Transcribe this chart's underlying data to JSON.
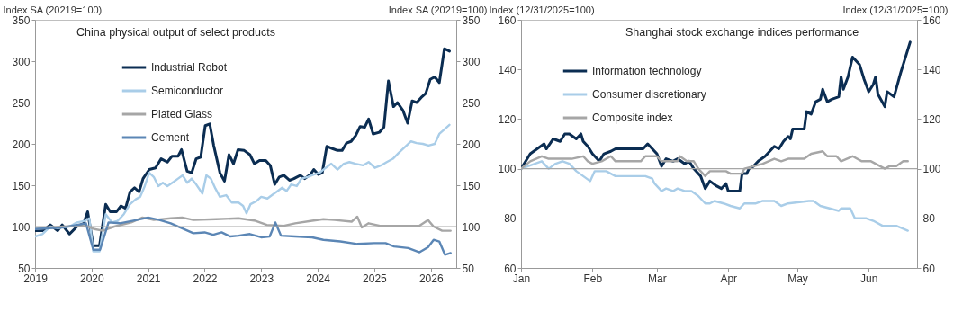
{
  "chart_data": [
    {
      "type": "line",
      "title": "China physical output of select products",
      "ylabel": "Index SA (20219=100)",
      "y2label": "Index SA (20219=100)",
      "xlim": [
        2019,
        2026.45
      ],
      "xticks": [
        2019,
        2020,
        2021,
        2022,
        2023,
        2024,
        2025,
        2026
      ],
      "ylim": [
        50,
        350
      ],
      "yticks": [
        50,
        100,
        150,
        200,
        250,
        300,
        350
      ],
      "y2lim": [
        50,
        350
      ],
      "y2ticks": [
        50,
        100,
        150,
        200,
        250,
        300,
        350
      ],
      "legend": "top left",
      "grid": false,
      "line_style": "solid",
      "marker": "none",
      "ref_lines": [
        {
          "axis": "y",
          "value": 100,
          "color": "#a6a6a6"
        }
      ],
      "series": [
        {
          "name": "Industrial Robot",
          "color": "#0b2d52",
          "x": [
            2019,
            2019.13,
            2019.27,
            2019.4,
            2019.48,
            2019.61,
            2019.74,
            2019.86,
            2019.93,
            2020.03,
            2020.14,
            2020.25,
            2020.33,
            2020.44,
            2020.52,
            2020.6,
            2020.68,
            2020.76,
            2020.84,
            2020.91,
            2021.02,
            2021.13,
            2021.23,
            2021.34,
            2021.42,
            2021.53,
            2021.59,
            2021.69,
            2021.77,
            2021.85,
            2021.93,
            2022.01,
            2022.09,
            2022.16,
            2022.27,
            2022.35,
            2022.43,
            2022.51,
            2022.59,
            2022.7,
            2022.8,
            2022.88,
            2022.97,
            2023.08,
            2023.16,
            2023.24,
            2023.32,
            2023.4,
            2023.5,
            2023.58,
            2023.69,
            2023.77,
            2023.87,
            2023.93,
            2024.01,
            2024.08,
            2024.16,
            2024.27,
            2024.35,
            2024.43,
            2024.51,
            2024.59,
            2024.67,
            2024.75,
            2024.83,
            2024.9,
            2024.98,
            2025.09,
            2025.17,
            2025.25,
            2025.34,
            2025.41,
            2025.51,
            2025.59,
            2025.67,
            2025.75,
            2025.83,
            2025.91,
            2025.99,
            2026.07,
            2026.15,
            2026.24,
            2026.33
          ],
          "values": [
            95,
            95,
            102,
            95,
            102,
            91,
            100,
            104,
            118,
            77,
            77,
            127,
            118,
            118,
            125,
            122,
            142,
            147,
            142,
            158,
            169,
            171,
            182,
            178,
            185,
            185,
            193,
            167,
            165,
            182,
            184,
            222,
            224,
            198,
            165,
            155,
            187,
            176,
            193,
            192,
            187,
            176,
            180,
            180,
            174,
            151,
            160,
            162,
            156,
            158,
            162,
            158,
            163,
            169,
            163,
            165,
            197,
            194,
            192,
            192,
            201,
            203,
            210,
            221,
            220,
            230,
            212,
            214,
            220,
            276,
            245,
            250,
            240,
            225,
            252,
            250,
            256,
            261,
            278,
            281,
            274,
            315,
            312
          ]
        },
        {
          "name": "Semiconductor",
          "color": "#a9cde8",
          "x": [
            2019,
            2019.13,
            2019.27,
            2019.4,
            2019.61,
            2019.74,
            2019.88,
            2019.96,
            2020.03,
            2020.14,
            2020.25,
            2020.36,
            2020.46,
            2020.57,
            2020.68,
            2020.78,
            2020.86,
            2020.94,
            2021.02,
            2021.1,
            2021.18,
            2021.26,
            2021.34,
            2021.45,
            2021.53,
            2021.61,
            2021.69,
            2021.77,
            2021.85,
            2021.96,
            2022.03,
            2022.11,
            2022.19,
            2022.27,
            2022.38,
            2022.48,
            2022.6,
            2022.68,
            2022.74,
            2022.81,
            2022.92,
            2023,
            2023.11,
            2023.19,
            2023.29,
            2023.37,
            2023.45,
            2023.53,
            2023.63,
            2023.71,
            2023.82,
            2023.93,
            2024.03,
            2024.14,
            2024.24,
            2024.35,
            2024.46,
            2024.56,
            2024.67,
            2024.8,
            2024.9,
            2025.01,
            2025.12,
            2025.22,
            2025.33,
            2025.43,
            2025.54,
            2025.65,
            2025.75,
            2025.86,
            2025.96,
            2026.07,
            2026.15,
            2026.25,
            2026.33
          ],
          "values": [
            88,
            91,
            100,
            98,
            100,
            105,
            107,
            110,
            70,
            70,
            115,
            105,
            107,
            115,
            127,
            133,
            136,
            149,
            165,
            160,
            149,
            153,
            149,
            154,
            158,
            162,
            153,
            158,
            151,
            140,
            162,
            158,
            146,
            136,
            138,
            129,
            129,
            125,
            116,
            127,
            131,
            136,
            134,
            138,
            143,
            147,
            143,
            151,
            149,
            158,
            160,
            163,
            165,
            171,
            176,
            169,
            176,
            178,
            176,
            174,
            178,
            171,
            174,
            178,
            182,
            189,
            196,
            203,
            201,
            200,
            198,
            200,
            212,
            218,
            223
          ]
        },
        {
          "name": "Plated Glass",
          "color": "#a6a6a6",
          "x": [
            2019,
            2019.5,
            2019.9,
            2020.05,
            2020.2,
            2020.4,
            2020.7,
            2020.9,
            2021.1,
            2021.4,
            2021.6,
            2021.8,
            2022.2,
            2022.6,
            2022.9,
            2023.1,
            2023.4,
            2023.6,
            2023.9,
            2024.1,
            2024.3,
            2024.6,
            2024.7,
            2024.78,
            2024.9,
            2025.1,
            2025.5,
            2025.8,
            2025.95,
            2026.05,
            2026.2,
            2026.35
          ],
          "values": [
            97,
            100,
            101,
            97,
            95,
            100,
            105,
            111,
            108,
            110,
            111,
            108,
            109,
            110,
            107,
            102,
            101,
            104,
            107,
            109,
            108,
            106,
            112,
            99,
            104,
            101,
            101,
            101,
            108,
            100,
            95,
            95
          ]
        },
        {
          "name": "Cement",
          "color": "#5b86b5",
          "x": [
            2019,
            2019.5,
            2019.9,
            2020.03,
            2020.15,
            2020.3,
            2020.5,
            2020.8,
            2021,
            2021.2,
            2021.4,
            2021.6,
            2021.8,
            2022,
            2022.15,
            2022.3,
            2022.45,
            2022.6,
            2022.8,
            2023,
            2023.15,
            2023.25,
            2023.35,
            2023.6,
            2023.9,
            2024.1,
            2024.4,
            2024.7,
            2025,
            2025.2,
            2025.35,
            2025.6,
            2025.8,
            2025.95,
            2026.05,
            2026.15,
            2026.25,
            2026.35
          ],
          "values": [
            97,
            99,
            104,
            72,
            72,
            105,
            104,
            108,
            111,
            108,
            104,
            98,
            92,
            93,
            90,
            93,
            88,
            89,
            91,
            87,
            88,
            105,
            89,
            88,
            87,
            84,
            82,
            79,
            80,
            80,
            76,
            74,
            69,
            75,
            84,
            82,
            66,
            68
          ]
        }
      ]
    },
    {
      "type": "line",
      "title": "Shanghai stock exchange indices performance",
      "ylabel": "Index (12/31/2025=100)",
      "y2label": "Index (12/31/2025=100)",
      "xlim": [
        "--01-01",
        "--06-22"
      ],
      "xticks": [
        {
          "value": "--01-01",
          "label": "Jan"
        },
        {
          "value": "--02-01",
          "label": "Feb"
        },
        {
          "value": "--03-01",
          "label": "Mar"
        },
        {
          "value": "--04-01",
          "label": "Apr"
        },
        {
          "value": "--05-01",
          "label": "May"
        },
        {
          "value": "--06-01",
          "label": "Jun"
        }
      ],
      "ylim": [
        60,
        160
      ],
      "yticks": [
        60,
        80,
        100,
        120,
        140,
        160
      ],
      "y2lim": [
        60,
        160
      ],
      "y2ticks": [
        60,
        80,
        100,
        120,
        140,
        160
      ],
      "legend": "top left",
      "grid": false,
      "line_style": "solid",
      "marker": "none",
      "ref_lines": [
        {
          "axis": "y",
          "value": 100,
          "color": "#a6a6a6"
        }
      ],
      "series": [
        {
          "name": "Information technology",
          "color": "#0b2d52",
          "x": [
            "--01-01",
            "--01-05",
            "--01-08",
            "--01-11",
            "--01-12",
            "--01-15",
            "--01-18",
            "--01-20",
            "--01-22",
            "--01-25",
            "--01-27",
            "--01-28",
            "--01-30",
            "--02-01",
            "--02-04",
            "--02-06",
            "--02-09",
            "--02-11",
            "--02-17",
            "--02-23",
            "--02-25",
            "--02-27",
            "--03-01",
            "--03-03",
            "--03-05",
            "--03-08",
            "--03-10",
            "--03-13",
            "--03-15",
            "--03-17",
            "--03-20",
            "--03-22",
            "--03-24",
            "--03-27",
            "--03-29",
            "--03-31",
            "--04-01",
            "--04-04",
            "--04-06",
            "--04-07",
            "--04-09",
            "--04-10",
            "--04-12",
            "--04-14",
            "--04-17",
            "--04-19",
            "--04-21",
            "--04-23",
            "--04-25",
            "--04-27",
            "--04-28",
            "--04-29",
            "--05-04",
            "--05-05",
            "--05-07",
            "--05-09",
            "--05-11",
            "--05-12",
            "--05-14",
            "--05-16",
            "--05-19",
            "--05-20",
            "--05-21",
            "--05-23",
            "--05-25",
            "--05-27",
            "--05-28",
            "--05-30",
            "--06-01",
            "--06-03",
            "--06-04",
            "--06-05",
            "--06-08",
            "--06-09",
            "--06-12",
            "--06-15",
            "--06-19"
          ],
          "values": [
            100,
            106,
            108,
            110,
            108,
            112,
            111,
            114,
            114,
            112,
            114,
            111,
            109,
            106,
            103,
            106,
            107,
            108,
            108,
            108,
            110,
            108,
            106,
            101,
            104,
            103,
            104,
            102,
            103,
            100,
            97,
            92,
            95,
            93,
            92,
            94,
            91,
            91,
            91,
            98,
            98,
            100,
            101,
            103,
            105,
            107,
            109,
            108,
            111,
            113,
            112,
            116,
            116,
            123,
            122,
            127,
            128,
            132,
            127,
            128,
            129,
            137,
            132,
            137,
            145,
            143,
            142,
            136,
            131,
            134,
            137,
            130,
            125,
            131,
            129,
            139,
            151
          ]
        },
        {
          "name": "Consumer discretionary",
          "color": "#a9cde8",
          "x": [
            "--01-01",
            "--01-07",
            "--01-10",
            "--01-13",
            "--01-16",
            "--01-19",
            "--01-22",
            "--01-25",
            "--01-28",
            "--01-31",
            "--02-02",
            "--02-07",
            "--02-11",
            "--02-21",
            "--02-24",
            "--02-27",
            "--02-28",
            "--03-03",
            "--03-05",
            "--03-08",
            "--03-10",
            "--03-13",
            "--03-16",
            "--03-19",
            "--03-22",
            "--03-24",
            "--03-26",
            "--03-30",
            "--04-02",
            "--04-06",
            "--04-08",
            "--04-13",
            "--04-16",
            "--04-21",
            "--04-24",
            "--04-27",
            "--05-06",
            "--05-08",
            "--05-11",
            "--05-15",
            "--05-19",
            "--05-20",
            "--05-24",
            "--05-26",
            "--05-31",
            "--06-03",
            "--06-07",
            "--06-09",
            "--06-13",
            "--06-18"
          ],
          "values": [
            100,
            102,
            103,
            100,
            102,
            103,
            102,
            99,
            97,
            95,
            99,
            99,
            97,
            97,
            97,
            96,
            94,
            91,
            92,
            91,
            92,
            91,
            91,
            89,
            86,
            86,
            87,
            86,
            85,
            84,
            86,
            86,
            87,
            87,
            85,
            86,
            87,
            87,
            85,
            84,
            83,
            84,
            84,
            80,
            80,
            79,
            77,
            77,
            77,
            75
          ]
        },
        {
          "name": "Composite index",
          "color": "#a6a6a6",
          "x": [
            "--01-01",
            "--01-05",
            "--01-10",
            "--01-13",
            "--01-19",
            "--01-23",
            "--01-28",
            "--01-30",
            "--02-01",
            "--02-05",
            "--02-09",
            "--02-11",
            "--02-22",
            "--02-24",
            "--03-01",
            "--03-03",
            "--03-10",
            "--03-11",
            "--03-14",
            "--03-17",
            "--03-19",
            "--03-22",
            "--03-24",
            "--03-26",
            "--03-31",
            "--04-02",
            "--04-07",
            "--04-08",
            "--04-12",
            "--04-16",
            "--04-21",
            "--04-24",
            "--04-27",
            "--05-04",
            "--05-07",
            "--05-12",
            "--05-14",
            "--05-18",
            "--05-20",
            "--05-25",
            "--05-29",
            "--06-02",
            "--06-08",
            "--06-10",
            "--06-13",
            "--06-16",
            "--06-18"
          ],
          "values": [
            100,
            103,
            105,
            104,
            104,
            104,
            105,
            103,
            102,
            103,
            105,
            103,
            103,
            105,
            105,
            103,
            103,
            105,
            103,
            103,
            100,
            97,
            99,
            99,
            99,
            98,
            98,
            100,
            101,
            102,
            104,
            103,
            104,
            104,
            106,
            107,
            105,
            105,
            103,
            105,
            103,
            103,
            100,
            101,
            101,
            103,
            103
          ]
        }
      ]
    }
  ]
}
